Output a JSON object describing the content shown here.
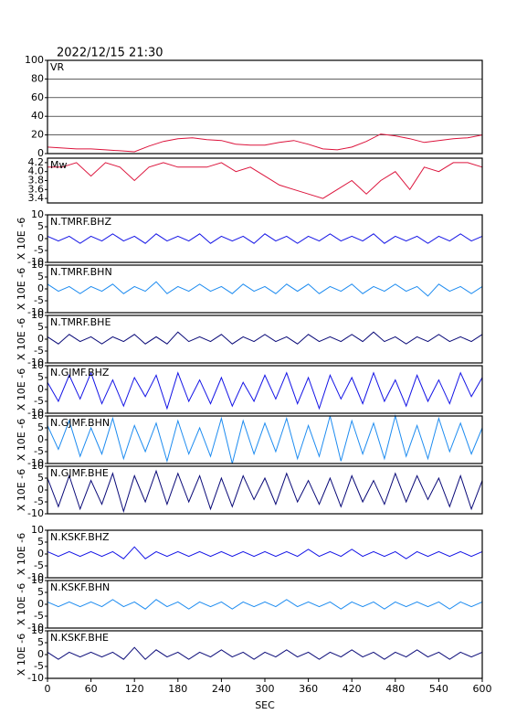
{
  "chart_data": [
    {
      "type": "line",
      "title": "2022/12/15 21:30",
      "xlim": [
        0,
        600
      ],
      "ylim": [
        0,
        100
      ],
      "yticks": [
        0,
        20,
        40,
        60,
        80,
        100
      ],
      "grid": true,
      "x": [
        0,
        20,
        40,
        60,
        80,
        100,
        120,
        140,
        160,
        180,
        200,
        220,
        240,
        260,
        280,
        300,
        320,
        340,
        360,
        380,
        400,
        420,
        440,
        460,
        480,
        500,
        520,
        540,
        560,
        580,
        600
      ],
      "series": [
        {
          "name": "VR",
          "color": "#dc143c",
          "values": [
            7,
            6,
            5,
            5,
            4,
            3,
            2,
            8,
            13,
            16,
            17,
            15,
            14,
            10,
            9,
            9,
            12,
            14,
            10,
            5,
            4,
            7,
            13,
            21,
            19,
            16,
            12,
            14,
            16,
            17,
            20
          ]
        }
      ]
    },
    {
      "type": "line",
      "xlim": [
        0,
        600
      ],
      "ylim": [
        3.3,
        4.3
      ],
      "yticks": [
        3.4,
        3.6,
        3.8,
        {
          "value": 4,
          "label": "4.0"
        },
        4.2
      ],
      "grid": false,
      "x": [
        0,
        20,
        40,
        60,
        80,
        100,
        120,
        140,
        160,
        180,
        200,
        220,
        240,
        260,
        280,
        300,
        320,
        340,
        360,
        380,
        400,
        420,
        440,
        460,
        480,
        500,
        520,
        540,
        560,
        580,
        600
      ],
      "series": [
        {
          "name": "Mw",
          "color": "#dc143c",
          "values": [
            4.1,
            4.1,
            4.2,
            3.9,
            4.2,
            4.1,
            3.8,
            4.1,
            4.2,
            4.1,
            4.1,
            4.1,
            4.2,
            4.0,
            4.1,
            3.9,
            3.7,
            3.6,
            3.5,
            3.4,
            3.6,
            3.8,
            3.5,
            3.8,
            4.0,
            3.6,
            4.1,
            4.0,
            4.2,
            4.2,
            4.1
          ]
        }
      ]
    },
    {
      "type": "line",
      "ylabel": "X 10E -6",
      "xlim": [
        0,
        600
      ],
      "ylim": [
        -10,
        10
      ],
      "yticks": [
        -10,
        -5,
        0,
        5,
        10
      ],
      "grid": false,
      "x": [
        0,
        15,
        30,
        45,
        60,
        75,
        90,
        105,
        120,
        135,
        150,
        165,
        180,
        195,
        210,
        225,
        240,
        255,
        270,
        285,
        300,
        315,
        330,
        345,
        360,
        375,
        390,
        405,
        420,
        435,
        450,
        465,
        480,
        495,
        510,
        525,
        540,
        555,
        570,
        585,
        600
      ],
      "series": [
        {
          "name": "N.TMRF.BHZ",
          "color": "#1414e6",
          "values": [
            1,
            -1,
            1,
            -2,
            1,
            -1,
            2,
            -1,
            1,
            -2,
            2,
            -1,
            1,
            -1,
            2,
            -2,
            1,
            -1,
            1,
            -2,
            2,
            -1,
            1,
            -2,
            1,
            -1,
            2,
            -1,
            1,
            -1,
            2,
            -2,
            1,
            -1,
            1,
            -2,
            1,
            -1,
            2,
            -1,
            1
          ]
        }
      ]
    },
    {
      "type": "line",
      "ylabel": "X 10E -6",
      "xlim": [
        0,
        600
      ],
      "ylim": [
        -10,
        10
      ],
      "yticks": [
        -10,
        -5,
        0,
        5,
        10
      ],
      "grid": false,
      "x": [
        0,
        15,
        30,
        45,
        60,
        75,
        90,
        105,
        120,
        135,
        150,
        165,
        180,
        195,
        210,
        225,
        240,
        255,
        270,
        285,
        300,
        315,
        330,
        345,
        360,
        375,
        390,
        405,
        420,
        435,
        450,
        465,
        480,
        495,
        510,
        525,
        540,
        555,
        570,
        585,
        600
      ],
      "series": [
        {
          "name": "N.TMRF.BHN",
          "color": "#1e8cf0",
          "values": [
            2,
            -1,
            1,
            -2,
            1,
            -1,
            2,
            -2,
            1,
            -1,
            3,
            -2,
            1,
            -1,
            2,
            -1,
            1,
            -2,
            2,
            -1,
            1,
            -2,
            2,
            -1,
            2,
            -2,
            1,
            -1,
            2,
            -2,
            1,
            -1,
            2,
            -1,
            1,
            -3,
            2,
            -1,
            1,
            -2,
            1
          ]
        }
      ]
    },
    {
      "type": "line",
      "ylabel": "X 10E -6",
      "xlim": [
        0,
        600
      ],
      "ylim": [
        -10,
        10
      ],
      "yticks": [
        -10,
        -5,
        0,
        5,
        10
      ],
      "grid": false,
      "x": [
        0,
        15,
        30,
        45,
        60,
        75,
        90,
        105,
        120,
        135,
        150,
        165,
        180,
        195,
        210,
        225,
        240,
        255,
        270,
        285,
        300,
        315,
        330,
        345,
        360,
        375,
        390,
        405,
        420,
        435,
        450,
        465,
        480,
        495,
        510,
        525,
        540,
        555,
        570,
        585,
        600
      ],
      "series": [
        {
          "name": "N.TMRF.BHE",
          "color": "#0a0a78",
          "values": [
            1,
            -2,
            2,
            -1,
            1,
            -2,
            1,
            -1,
            2,
            -2,
            1,
            -2,
            3,
            -1,
            1,
            -1,
            2,
            -2,
            1,
            -1,
            2,
            -1,
            1,
            -2,
            2,
            -1,
            1,
            -1,
            2,
            -1,
            3,
            -1,
            1,
            -2,
            1,
            -1,
            2,
            -1,
            1,
            -1,
            2
          ]
        }
      ]
    },
    {
      "type": "line",
      "ylabel": "X 10E -6",
      "xlim": [
        0,
        600
      ],
      "ylim": [
        -10,
        10
      ],
      "yticks": [
        -10,
        -5,
        0,
        5,
        10
      ],
      "grid": false,
      "x": [
        0,
        15,
        30,
        45,
        60,
        75,
        90,
        105,
        120,
        135,
        150,
        165,
        180,
        195,
        210,
        225,
        240,
        255,
        270,
        285,
        300,
        315,
        330,
        345,
        360,
        375,
        390,
        405,
        420,
        435,
        450,
        465,
        480,
        495,
        510,
        525,
        540,
        555,
        570,
        585,
        600
      ],
      "series": [
        {
          "name": "N.GJMF.BHZ",
          "color": "#1414e6",
          "values": [
            3,
            -5,
            6,
            -4,
            7,
            -6,
            4,
            -7,
            5,
            -3,
            6,
            -8,
            7,
            -5,
            4,
            -6,
            5,
            -7,
            3,
            -5,
            6,
            -4,
            7,
            -6,
            5,
            -8,
            6,
            -4,
            5,
            -6,
            7,
            -5,
            4,
            -7,
            6,
            -5,
            4,
            -6,
            7,
            -3,
            5
          ]
        }
      ]
    },
    {
      "type": "line",
      "ylabel": "X 10E -6",
      "xlim": [
        0,
        600
      ],
      "ylim": [
        -10,
        10
      ],
      "yticks": [
        -10,
        -5,
        0,
        5,
        10
      ],
      "grid": false,
      "x": [
        0,
        15,
        30,
        45,
        60,
        75,
        90,
        105,
        120,
        135,
        150,
        165,
        180,
        195,
        210,
        225,
        240,
        255,
        270,
        285,
        300,
        315,
        330,
        345,
        360,
        375,
        390,
        405,
        420,
        435,
        450,
        465,
        480,
        495,
        510,
        525,
        540,
        555,
        570,
        585,
        600
      ],
      "series": [
        {
          "name": "N.GJMF.BHN",
          "color": "#1e8cf0",
          "values": [
            6,
            -4,
            8,
            -7,
            5,
            -6,
            9,
            -8,
            6,
            -5,
            7,
            -9,
            8,
            -6,
            5,
            -7,
            9,
            -10,
            8,
            -6,
            7,
            -5,
            9,
            -8,
            6,
            -7,
            10,
            -9,
            8,
            -6,
            7,
            -8,
            10,
            -7,
            6,
            -8,
            9,
            -5,
            7,
            -6,
            5
          ]
        }
      ]
    },
    {
      "type": "line",
      "ylabel": "X 10E -6",
      "xlim": [
        0,
        600
      ],
      "ylim": [
        -10,
        10
      ],
      "yticks": [
        -10,
        -5,
        0,
        5,
        10
      ],
      "grid": false,
      "x": [
        0,
        15,
        30,
        45,
        60,
        75,
        90,
        105,
        120,
        135,
        150,
        165,
        180,
        195,
        210,
        225,
        240,
        255,
        270,
        285,
        300,
        315,
        330,
        345,
        360,
        375,
        390,
        405,
        420,
        435,
        450,
        465,
        480,
        495,
        510,
        525,
        540,
        555,
        570,
        585,
        600
      ],
      "series": [
        {
          "name": "N.GJMF.BHE",
          "color": "#0a0a78",
          "values": [
            5,
            -7,
            6,
            -8,
            4,
            -6,
            7,
            -9,
            6,
            -5,
            8,
            -6,
            7,
            -5,
            6,
            -8,
            5,
            -7,
            6,
            -4,
            5,
            -6,
            7,
            -5,
            4,
            -6,
            5,
            -7,
            6,
            -5,
            4,
            -6,
            7,
            -5,
            6,
            -4,
            5,
            -7,
            6,
            -8,
            4
          ]
        }
      ]
    },
    {
      "type": "line",
      "ylabel": "X 10E -6",
      "xlim": [
        0,
        600
      ],
      "ylim": [
        -10,
        10
      ],
      "yticks": [
        -10,
        -5,
        0,
        5,
        10
      ],
      "grid": false,
      "x": [
        0,
        15,
        30,
        45,
        60,
        75,
        90,
        105,
        120,
        135,
        150,
        165,
        180,
        195,
        210,
        225,
        240,
        255,
        270,
        285,
        300,
        315,
        330,
        345,
        360,
        375,
        390,
        405,
        420,
        435,
        450,
        465,
        480,
        495,
        510,
        525,
        540,
        555,
        570,
        585,
        600
      ],
      "series": [
        {
          "name": "N.KSKF.BHZ",
          "color": "#1414e6",
          "values": [
            1,
            -1,
            1,
            -1,
            1,
            -1,
            1,
            -2,
            3,
            -2,
            1,
            -1,
            1,
            -1,
            1,
            -1,
            1,
            -1,
            1,
            -1,
            1,
            -1,
            1,
            -1,
            2,
            -1,
            1,
            -1,
            2,
            -1,
            1,
            -1,
            1,
            -2,
            1,
            -1,
            1,
            -1,
            1,
            -1,
            1
          ]
        }
      ]
    },
    {
      "type": "line",
      "ylabel": "X 10E -6",
      "xlim": [
        0,
        600
      ],
      "ylim": [
        -10,
        10
      ],
      "yticks": [
        -10,
        -5,
        0,
        5,
        10
      ],
      "grid": false,
      "x": [
        0,
        15,
        30,
        45,
        60,
        75,
        90,
        105,
        120,
        135,
        150,
        165,
        180,
        195,
        210,
        225,
        240,
        255,
        270,
        285,
        300,
        315,
        330,
        345,
        360,
        375,
        390,
        405,
        420,
        435,
        450,
        465,
        480,
        495,
        510,
        525,
        540,
        555,
        570,
        585,
        600
      ],
      "series": [
        {
          "name": "N.KSKF.BHN",
          "color": "#1e8cf0",
          "values": [
            1,
            -1,
            1,
            -1,
            1,
            -1,
            2,
            -1,
            1,
            -2,
            2,
            -1,
            1,
            -2,
            1,
            -1,
            1,
            -2,
            1,
            -1,
            1,
            -1,
            2,
            -1,
            1,
            -1,
            1,
            -2,
            1,
            -1,
            1,
            -2,
            1,
            -1,
            1,
            -1,
            1,
            -2,
            1,
            -1,
            1
          ]
        }
      ]
    },
    {
      "type": "line",
      "ylabel": "X 10E -6",
      "xlabel": "SEC",
      "xlim": [
        0,
        600
      ],
      "xticks": [
        0,
        60,
        120,
        180,
        240,
        300,
        360,
        420,
        480,
        540,
        600
      ],
      "ylim": [
        -10,
        10
      ],
      "yticks": [
        -10,
        -5,
        0,
        5,
        10
      ],
      "grid": false,
      "x": [
        0,
        15,
        30,
        45,
        60,
        75,
        90,
        105,
        120,
        135,
        150,
        165,
        180,
        195,
        210,
        225,
        240,
        255,
        270,
        285,
        300,
        315,
        330,
        345,
        360,
        375,
        390,
        405,
        420,
        435,
        450,
        465,
        480,
        495,
        510,
        525,
        540,
        555,
        570,
        585,
        600
      ],
      "series": [
        {
          "name": "N.KSKF.BHE",
          "color": "#0a0a78",
          "values": [
            1,
            -2,
            1,
            -1,
            1,
            -1,
            1,
            -2,
            3,
            -2,
            2,
            -1,
            1,
            -2,
            1,
            -1,
            2,
            -1,
            1,
            -2,
            1,
            -1,
            2,
            -1,
            1,
            -2,
            1,
            -1,
            2,
            -1,
            1,
            -2,
            1,
            -1,
            2,
            -1,
            1,
            -2,
            1,
            -1,
            1
          ]
        }
      ]
    }
  ]
}
